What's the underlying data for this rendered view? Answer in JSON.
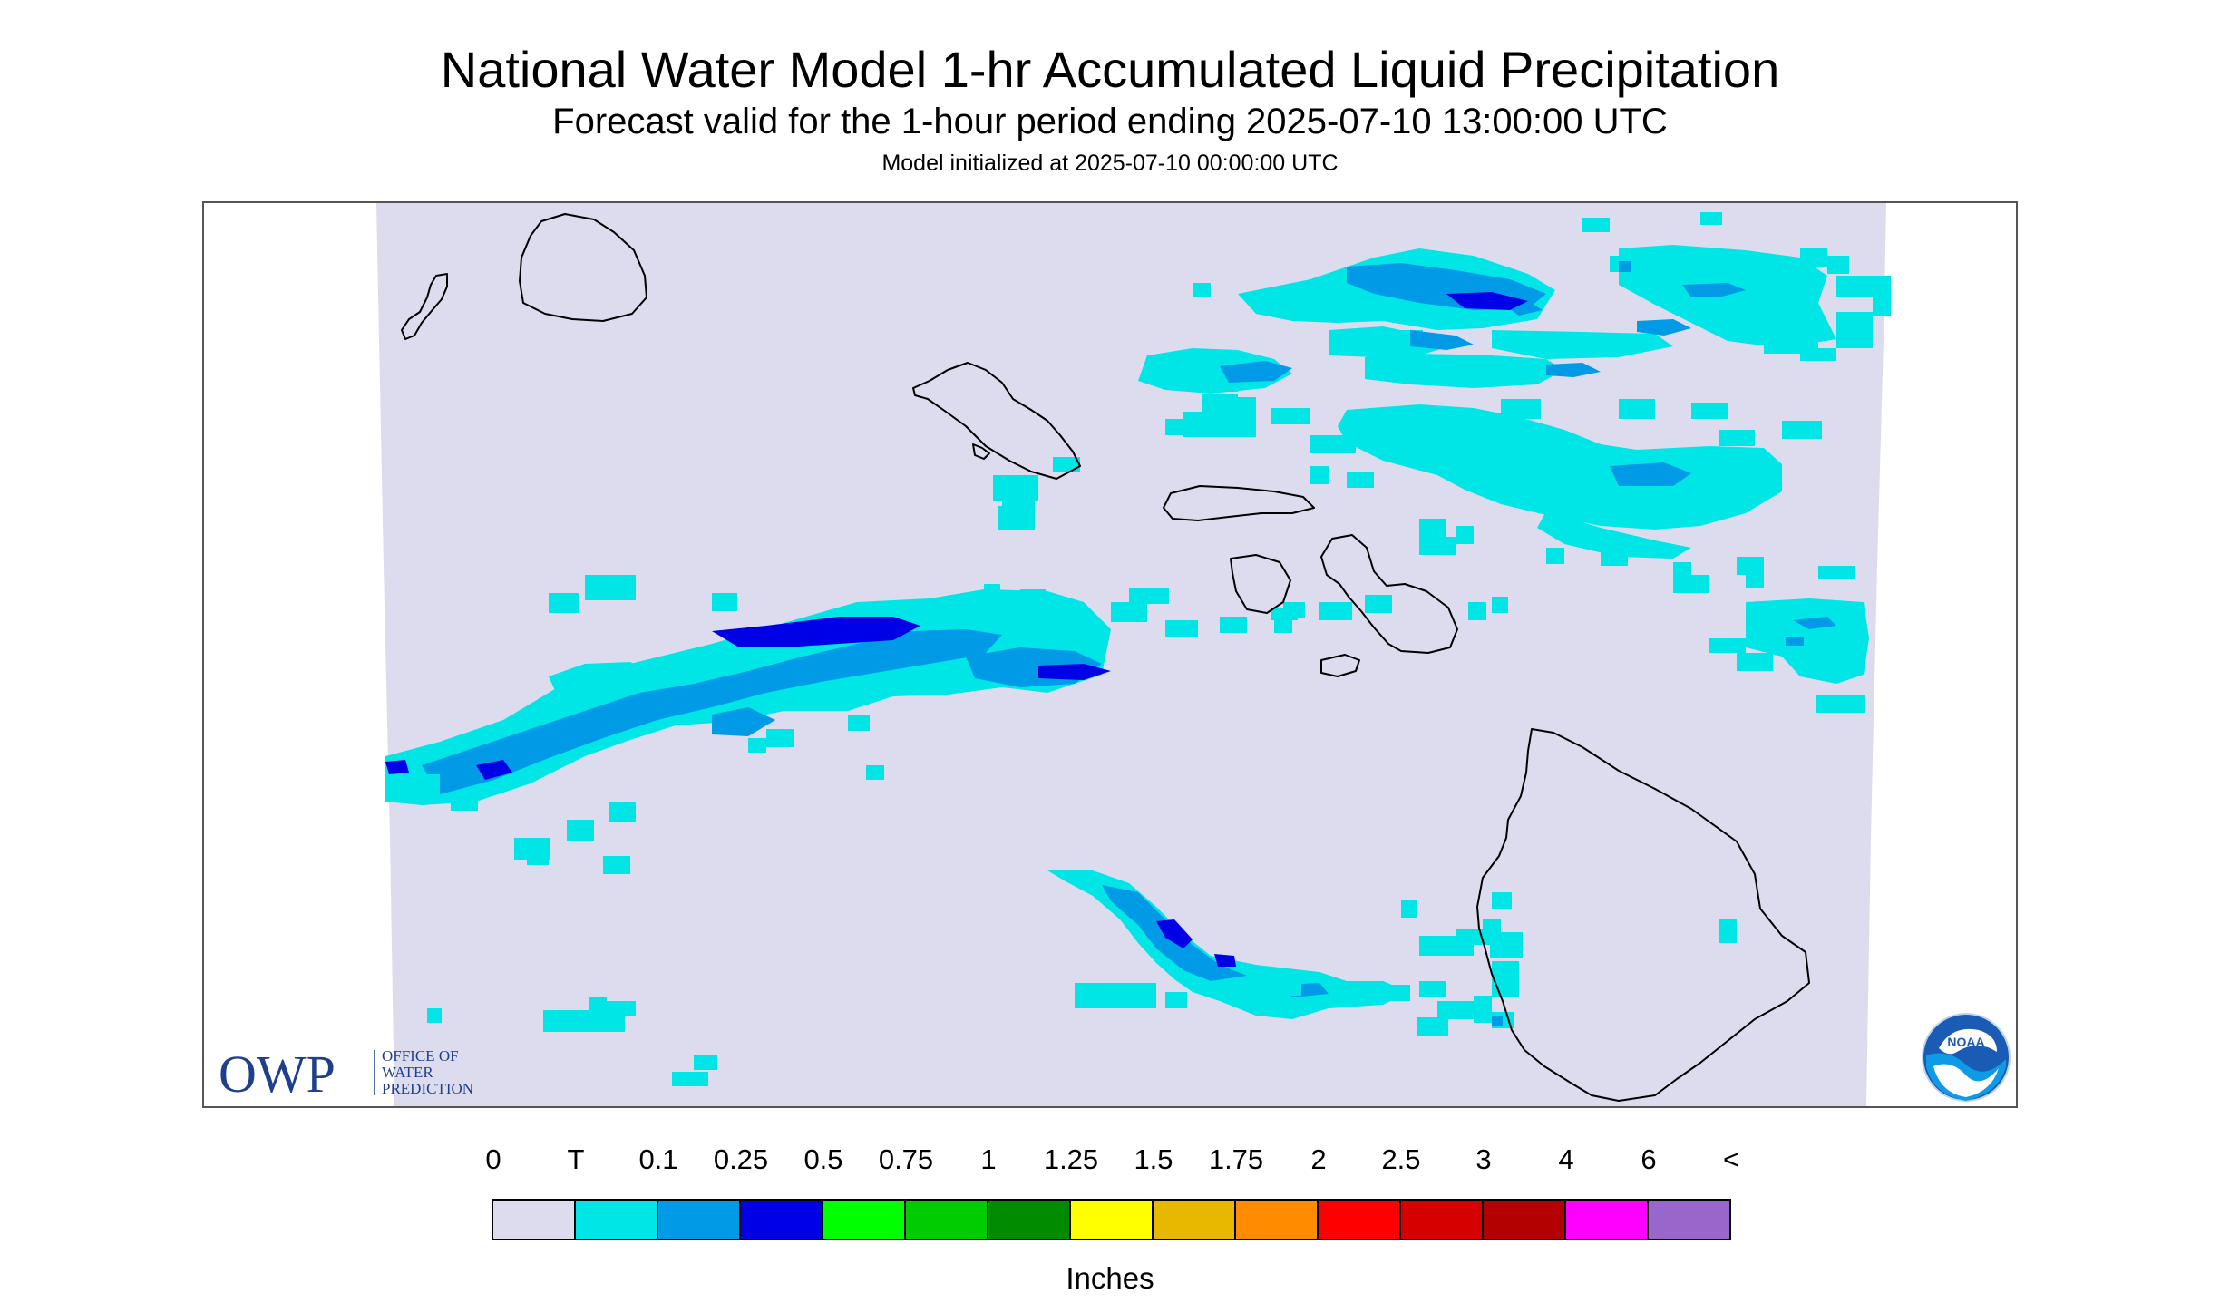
{
  "title": "National Water Model 1-hr Accumulated Liquid Precipitation",
  "subtitle": "Forecast valid for the 1-hour period ending 2025-07-10 13:00:00 UTC",
  "init_text": "Model initialized at 2025-07-10 00:00:00 UTC",
  "owp_logo": {
    "letters": "OWP",
    "text_lines": [
      "OFFICE OF",
      "WATER",
      "PREDICTION"
    ]
  },
  "noaa_logo": {
    "text": "NOAA"
  },
  "colors": {
    "zero": "#dcdcee",
    "trace": "#00e6e6",
    "p01": "#009ae6",
    "p025": "#0000e6",
    "p05": "#00ff00",
    "p075": "#00cc00",
    "p1": "#008b00",
    "p125": "#ffff00",
    "p15": "#e6b800",
    "p175": "#ff8c00",
    "p2": "#ff0000",
    "p25": "#d60000",
    "p3": "#b30000",
    "p4": "#ff00ff",
    "p6": "#9966cc",
    "coast": "#000000"
  },
  "legend": {
    "labels": [
      "0",
      "T",
      "0.1",
      "0.25",
      "0.5",
      "0.75",
      "1",
      "1.25",
      "1.5",
      "1.75",
      "2",
      "2.5",
      "3",
      "4",
      "6",
      "<"
    ],
    "swatches": [
      "#dcdcee",
      "#00e6e6",
      "#009ae6",
      "#0000e6",
      "#00ff00",
      "#00cc00",
      "#008b00",
      "#ffff00",
      "#e6b800",
      "#ff8c00",
      "#ff0000",
      "#d60000",
      "#b30000",
      "#ff00ff",
      "#9966cc"
    ],
    "units": "Inches"
  }
}
